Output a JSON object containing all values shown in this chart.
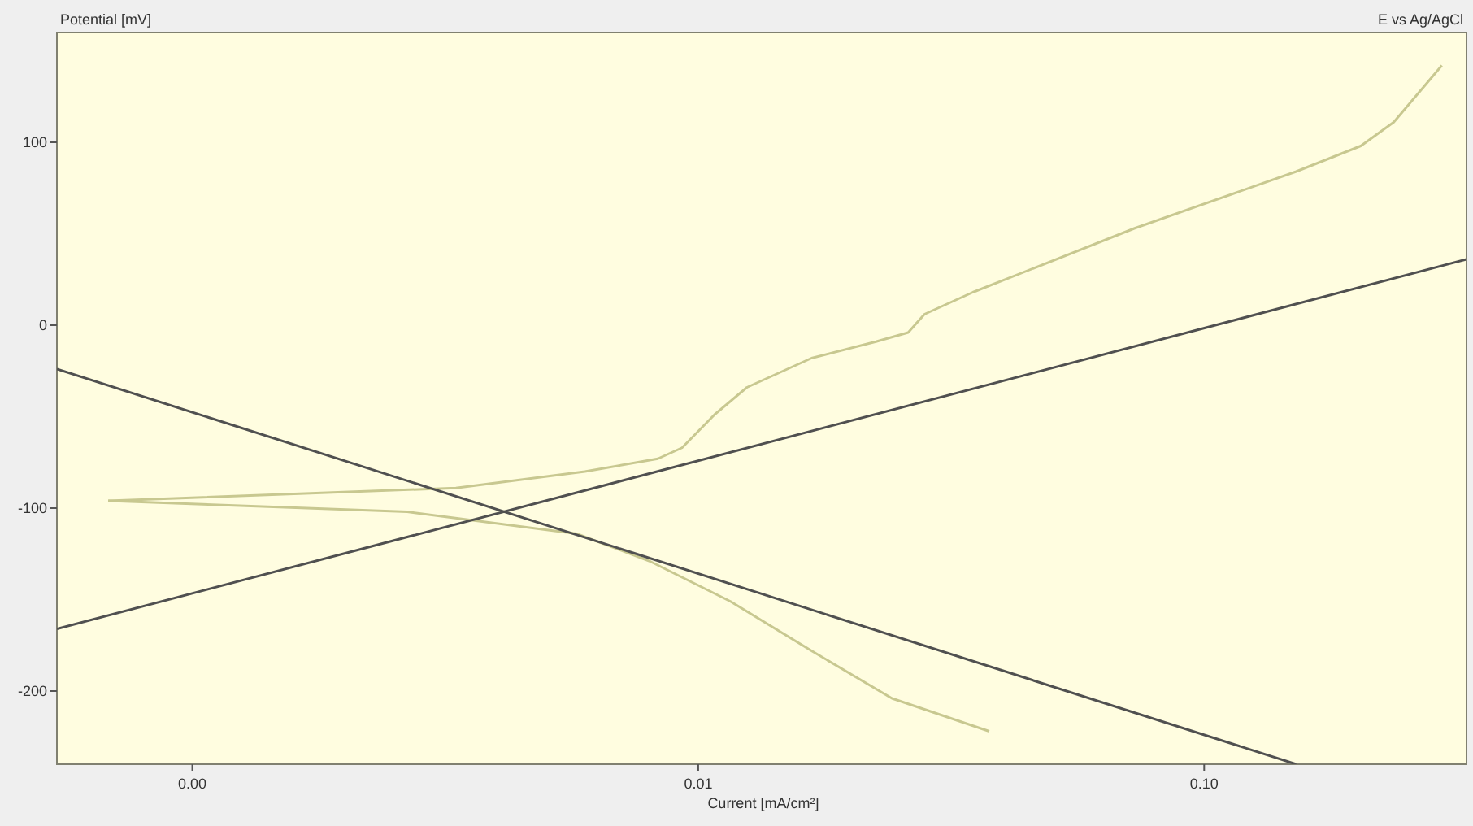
{
  "chart_data": {
    "type": "line",
    "ylabel": "Potential [mV]",
    "xlabel": "Current [mA/cm²]",
    "annotations": [
      "E vs Ag/AgCl"
    ],
    "log": "x",
    "xlim": [
      0.00054,
      0.33
    ],
    "ylim": [
      -240,
      160
    ],
    "xticks": [
      {
        "value": 0.001,
        "label": "0.00"
      },
      {
        "value": 0.01,
        "label": "0.01"
      },
      {
        "value": 0.1,
        "label": "0.10"
      }
    ],
    "yticks": [
      -200,
      -100,
      0,
      100
    ],
    "grid": false,
    "marker": "none",
    "line_style": "solid",
    "series": [
      {
        "color": "#c8c890",
        "x": [
          0.000682,
          0.00332,
          0.00597,
          0.00832,
          0.00929,
          0.01076,
          0.01248,
          0.01675,
          0.02245,
          0.026,
          0.028,
          0.0349,
          0.0729,
          0.152,
          0.204,
          0.237,
          0.295
        ],
        "values": [
          -96,
          -89,
          -80,
          -73,
          -67,
          -49,
          -34,
          -18,
          -9,
          -4,
          6,
          18,
          53,
          84,
          98,
          111,
          142
        ]
      },
      {
        "color": "#c8c890",
        "x": [
          0.000682,
          0.00266,
          0.00575,
          0.00802,
          0.01158,
          0.01675,
          0.02415,
          0.0376
        ],
        "values": [
          -96,
          -102,
          -114,
          -129,
          -151,
          -178,
          -204,
          -222
        ]
      },
      {
        "color": "#505050",
        "x": [
          0.00054,
          0.33
        ],
        "values": [
          -166,
          36
        ]
      },
      {
        "color": "#505050",
        "x": [
          0.00054,
          0.152
        ],
        "values": [
          -24,
          -240
        ]
      }
    ]
  }
}
